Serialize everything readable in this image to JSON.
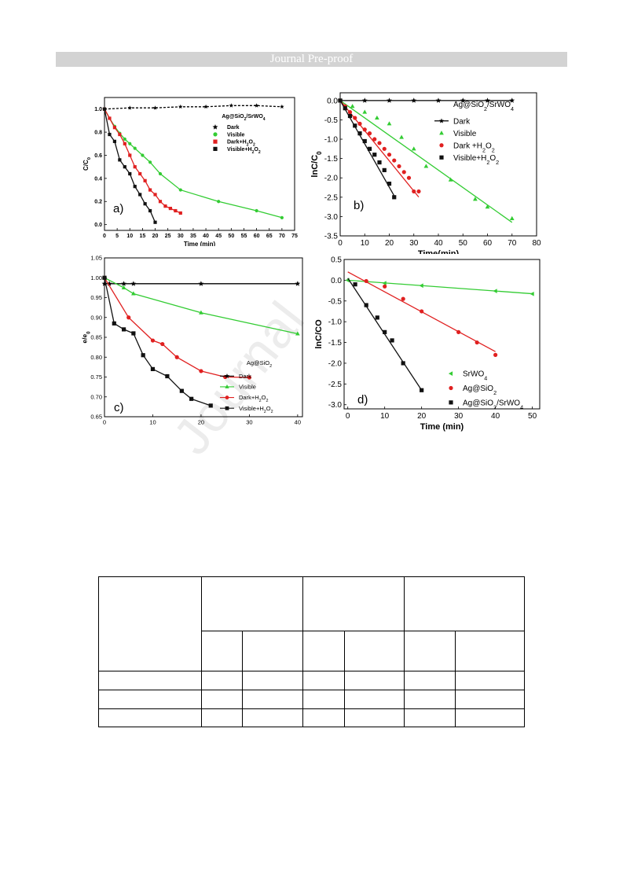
{
  "header": {
    "banner": "Journal Pre-proof"
  },
  "watermark": "Journal",
  "chart_data": [
    {
      "id": "a",
      "type": "line",
      "panel_label": "a)",
      "xlabel": "Time (min)",
      "ylabel": "C/C0",
      "xlim": [
        0,
        75
      ],
      "ylim": [
        -0.05,
        1.1
      ],
      "xticks": [
        0,
        5,
        10,
        15,
        20,
        25,
        30,
        35,
        40,
        45,
        50,
        55,
        60,
        65,
        70,
        75
      ],
      "yticks": [
        0.0,
        0.2,
        0.4,
        0.6,
        0.8,
        1.0
      ],
      "legend_title": "Ag@SiO2/SrWO4",
      "legend_position": "upper-right",
      "series": [
        {
          "name": "Dark",
          "color": "#000000",
          "marker": "star",
          "dash": true,
          "x": [
            0,
            10,
            20,
            30,
            40,
            50,
            60,
            70
          ],
          "y": [
            1.0,
            1.01,
            1.01,
            1.02,
            1.02,
            1.03,
            1.03,
            1.02
          ]
        },
        {
          "name": "Visible",
          "color": "#33cc33",
          "marker": "circle",
          "x": [
            0,
            2,
            4,
            6,
            8,
            10,
            12,
            15,
            18,
            22,
            30,
            45,
            60,
            70
          ],
          "y": [
            1.0,
            0.92,
            0.85,
            0.79,
            0.74,
            0.7,
            0.66,
            0.6,
            0.54,
            0.44,
            0.3,
            0.2,
            0.12,
            0.06
          ]
        },
        {
          "name": "Dark+H2O2",
          "color": "#e02020",
          "marker": "square",
          "x": [
            0,
            2,
            4,
            6,
            8,
            10,
            12,
            14,
            16,
            18,
            20,
            22,
            24,
            26,
            28,
            30
          ],
          "y": [
            1.0,
            0.92,
            0.84,
            0.78,
            0.7,
            0.6,
            0.5,
            0.44,
            0.38,
            0.3,
            0.26,
            0.2,
            0.16,
            0.14,
            0.12,
            0.1
          ]
        },
        {
          "name": "Visible+H2O2",
          "color": "#111111",
          "marker": "square",
          "x": [
            0,
            2,
            4,
            6,
            8,
            10,
            12,
            14,
            16,
            18,
            20
          ],
          "y": [
            1.0,
            0.78,
            0.72,
            0.56,
            0.5,
            0.44,
            0.33,
            0.26,
            0.18,
            0.12,
            0.02
          ]
        }
      ]
    },
    {
      "id": "b",
      "type": "scatter",
      "panel_label": "b)",
      "xlabel": "Time(min)",
      "ylabel": "lnC/C0",
      "xlim": [
        0,
        80
      ],
      "ylim": [
        -3.5,
        0.2
      ],
      "xticks": [
        0,
        10,
        20,
        30,
        40,
        50,
        60,
        70,
        80
      ],
      "yticks": [
        0.0,
        -0.5,
        -1.0,
        -1.5,
        -2.0,
        -2.5,
        -3.0,
        -3.5
      ],
      "legend_title": "Ag@SiO2/SrWO4",
      "legend_position": "upper-right",
      "series": [
        {
          "name": "Dark",
          "color": "#000000",
          "marker": "star",
          "fit": [
            0.0,
            0.0
          ],
          "x": [
            0,
            10,
            20,
            30,
            40,
            50,
            60,
            70
          ],
          "y": [
            0.0,
            0.0,
            0.0,
            0.0,
            0.0,
            0.0,
            0.0,
            0.0
          ]
        },
        {
          "name": "Visible",
          "color": "#33cc33",
          "marker": "triangle",
          "fit": [
            0.0,
            -0.045
          ],
          "x": [
            0,
            5,
            10,
            15,
            20,
            25,
            30,
            35,
            45,
            55,
            60,
            70
          ],
          "y": [
            0.0,
            -0.15,
            -0.3,
            -0.45,
            -0.6,
            -0.95,
            -1.25,
            -1.7,
            -2.05,
            -2.55,
            -2.75,
            -3.05
          ]
        },
        {
          "name": "Dark +H2O2",
          "color": "#e02020",
          "marker": "circle",
          "fit": [
            0.0,
            -0.078
          ],
          "x": [
            0,
            2,
            4,
            6,
            8,
            10,
            12,
            14,
            16,
            18,
            20,
            22,
            24,
            26,
            28,
            30,
            32
          ],
          "y": [
            0.0,
            -0.15,
            -0.3,
            -0.45,
            -0.6,
            -0.75,
            -0.85,
            -1.0,
            -1.1,
            -1.25,
            -1.4,
            -1.55,
            -1.7,
            -1.85,
            -2.0,
            -2.35,
            -2.35
          ]
        },
        {
          "name": "Visible+H2O2",
          "color": "#111111",
          "marker": "square",
          "fit": [
            0.0,
            -0.112
          ],
          "x": [
            0,
            2,
            4,
            6,
            8,
            10,
            12,
            14,
            16,
            18,
            20,
            22
          ],
          "y": [
            0.0,
            -0.2,
            -0.4,
            -0.65,
            -0.85,
            -1.05,
            -1.25,
            -1.4,
            -1.6,
            -1.8,
            -2.15,
            -2.5
          ]
        }
      ]
    },
    {
      "id": "c",
      "type": "line",
      "panel_label": "c)",
      "xlabel": "Time(min)",
      "ylabel": "e/e0",
      "xlim": [
        0,
        41
      ],
      "ylim": [
        0.65,
        1.05
      ],
      "xticks": [
        0,
        10,
        20,
        30,
        40
      ],
      "yticks": [
        0.65,
        0.7,
        0.75,
        0.8,
        0.85,
        0.9,
        0.95,
        1.0,
        1.05
      ],
      "legend_title": "Ag@SiO2",
      "legend_position": "lower-right",
      "series": [
        {
          "name": "Dark",
          "color": "#000000",
          "marker": "star",
          "x": [
            0,
            1,
            4,
            6,
            20,
            40
          ],
          "y": [
            0.985,
            0.985,
            0.985,
            0.985,
            0.985,
            0.985
          ]
        },
        {
          "name": "Visible",
          "color": "#33cc33",
          "marker": "triangle",
          "x": [
            0,
            4,
            6,
            20,
            40
          ],
          "y": [
            1.0,
            0.975,
            0.96,
            0.912,
            0.859
          ]
        },
        {
          "name": "Dark+H2O2",
          "color": "#e02020",
          "marker": "circle",
          "x": [
            0,
            5,
            10,
            12,
            15,
            20,
            25,
            30
          ],
          "y": [
            1.0,
            0.9,
            0.842,
            0.833,
            0.8,
            0.765,
            0.75,
            0.749
          ]
        },
        {
          "name": "Visible+H2O2",
          "color": "#111111",
          "marker": "square",
          "x": [
            0,
            2,
            4,
            6,
            8,
            10,
            13,
            16,
            18,
            22
          ],
          "y": [
            1.0,
            0.885,
            0.87,
            0.86,
            0.805,
            0.77,
            0.752,
            0.715,
            0.695,
            0.678
          ]
        }
      ]
    },
    {
      "id": "d",
      "type": "scatter",
      "panel_label": "d)",
      "xlabel": "Time (min)",
      "ylabel": "lnC/CO",
      "xlim": [
        -1,
        52
      ],
      "ylim": [
        -3.1,
        0.5
      ],
      "xticks": [
        0,
        10,
        20,
        30,
        40,
        50
      ],
      "yticks": [
        0.5,
        0.0,
        -0.5,
        -1.0,
        -1.5,
        -2.0,
        -2.5,
        -3.0
      ],
      "legend_position": "lower-right",
      "series": [
        {
          "name": "SrWO4",
          "color": "#33cc33",
          "marker": "triangle-left",
          "fit": [
            0.0,
            -0.0065
          ],
          "x": [
            0,
            10,
            20,
            40,
            50
          ],
          "y": [
            0.0,
            -0.07,
            -0.13,
            -0.26,
            -0.33
          ]
        },
        {
          "name": "Ag@SiO2",
          "color": "#e02020",
          "marker": "circle",
          "fit": [
            0.2,
            -0.048
          ],
          "x": [
            5,
            10,
            15,
            20,
            30,
            35,
            40
          ],
          "y": [
            -0.02,
            -0.15,
            -0.45,
            -0.75,
            -1.25,
            -1.5,
            -1.8
          ]
        },
        {
          "name": "Ag@SiO2/SrWO4",
          "color": "#111111",
          "marker": "square",
          "fit": [
            0.05,
            -0.135
          ],
          "x": [
            2,
            5,
            8,
            10,
            12,
            15,
            20
          ],
          "y": [
            -0.1,
            -0.6,
            -0.9,
            -1.25,
            -1.45,
            -2.0,
            -2.65
          ]
        }
      ]
    }
  ]
}
